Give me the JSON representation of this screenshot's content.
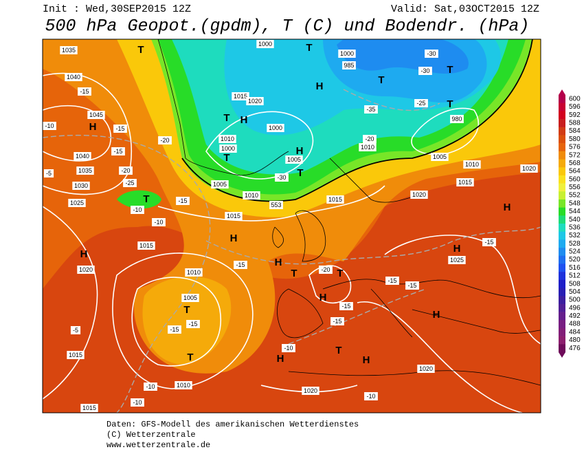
{
  "header": {
    "init": "Init : Wed,30SEP2015 12Z",
    "valid": "Valid: Sat,03OCT2015 12Z",
    "title": "500 hPa Geopot.(gpdm), T (C) und Bodendr. (hPa)"
  },
  "colorbar": {
    "labels": [
      600,
      596,
      592,
      588,
      584,
      580,
      576,
      572,
      568,
      564,
      560,
      556,
      552,
      548,
      544,
      540,
      536,
      532,
      528,
      524,
      520,
      516,
      512,
      508,
      504,
      500,
      496,
      492,
      488,
      484,
      480,
      476
    ],
    "colors": [
      "#b4004b",
      "#c80032",
      "#d2001e",
      "#c81e1e",
      "#d23c14",
      "#dc500a",
      "#e6640a",
      "#f08c0a",
      "#f5aa0a",
      "#fac80a",
      "#fae11e",
      "#f0f03c",
      "#c8f032",
      "#78e628",
      "#28dc28",
      "#1edc78",
      "#1edcbe",
      "#1ec8e6",
      "#1eaaf0",
      "#1e8cf0",
      "#1e6ef0",
      "#1e50f0",
      "#1e32dc",
      "#1e1ec8",
      "#281eb4",
      "#3c1ea0",
      "#501e96",
      "#641e8c",
      "#781e82",
      "#821e78",
      "#8c1e6e",
      "#6e0a5a"
    ]
  },
  "map_labels": {
    "centers": [
      "H",
      "H",
      "H",
      "H",
      "H",
      "H",
      "H",
      "H",
      "H",
      "H",
      "H",
      "H",
      "H",
      "T",
      "T",
      "T",
      "T",
      "T",
      "T",
      "T",
      "T",
      "T",
      "T",
      "T",
      "T",
      "T",
      "T"
    ],
    "pressure": [
      "1035",
      "1040",
      "1045",
      "1040",
      "1035",
      "1030",
      "1025",
      "1020",
      "1015",
      "1015",
      "1015",
      "1015",
      "1010",
      "1005",
      "1010",
      "1020",
      "1025",
      "1020",
      "1015",
      "1010",
      "1020",
      "1020",
      "1005",
      "980",
      "985",
      "1000",
      "1000",
      "1015",
      "1020",
      "1000",
      "1010",
      "1000",
      "1005",
      "1005",
      "1010",
      "553",
      "1015",
      "1010"
    ],
    "temperature": [
      "-15",
      "-10",
      "-15",
      "-15",
      "-20",
      "-25",
      "-10",
      "-10",
      "-15",
      "-20",
      "-15",
      "-20",
      "-15",
      "-15",
      "-15",
      "-15",
      "-10",
      "-10",
      "-10",
      "-5",
      "-10",
      "-15",
      "-15",
      "-15",
      "-30",
      "-35",
      "-30",
      "-30",
      "-25",
      "-20",
      "-5"
    ]
  },
  "footer": [
    "Daten: GFS-Modell des amerikanischen Wetterdienstes",
    "(C) Wetterzentrale",
    "www.wetterzentrale.de"
  ]
}
